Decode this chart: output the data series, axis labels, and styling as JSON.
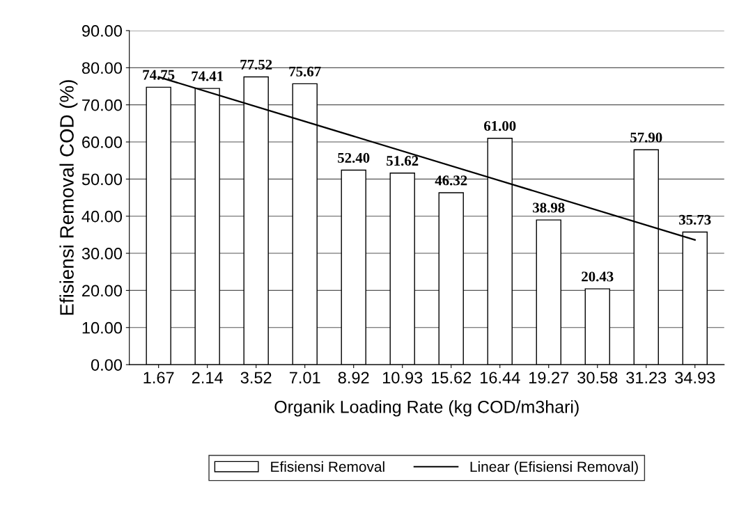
{
  "chart_data": {
    "type": "bar",
    "xlabel": "Organik Loading Rate (kg COD/m3hari)",
    "ylabel": "Efisiensi Removal COD (%)",
    "categories": [
      "1.67",
      "2.14",
      "3.52",
      "7.01",
      "8.92",
      "10.93",
      "15.62",
      "16.44",
      "19.27",
      "30.58",
      "31.23",
      "34.93"
    ],
    "series": [
      {
        "name": "Efisiensi Removal",
        "color": "#ffffff",
        "values": [
          74.75,
          74.41,
          77.52,
          75.67,
          52.4,
          51.62,
          46.32,
          61.0,
          38.98,
          20.43,
          57.9,
          35.73
        ]
      },
      {
        "name": "Linear (Efisiensi Removal)",
        "type": "line",
        "color": "#000000",
        "x": [
          "1.67",
          "34.93"
        ],
        "values": [
          77.5,
          33.6
        ]
      }
    ],
    "ylim": [
      0,
      90
    ],
    "yticks": [
      {
        "value": 0,
        "label": "0.00"
      },
      {
        "value": 10,
        "label": "10.00"
      },
      {
        "value": 20,
        "label": "20.00"
      },
      {
        "value": 30,
        "label": "30.00"
      },
      {
        "value": 40,
        "label": "40.00"
      },
      {
        "value": 50,
        "label": "50.00"
      },
      {
        "value": 60,
        "label": "60.00"
      },
      {
        "value": 70,
        "label": "70.00"
      },
      {
        "value": 80,
        "label": "80.00"
      },
      {
        "value": 90,
        "label": "90.00"
      }
    ],
    "value_labels": [
      "74.75",
      "74.41",
      "77.52",
      "75.67",
      "52.40",
      "51.62",
      "46.32",
      "61.00",
      "38.98",
      "20.43",
      "57.90",
      "35.73"
    ],
    "grid": "y",
    "legend": "bottom",
    "marker": "none",
    "line_style": "solid"
  }
}
